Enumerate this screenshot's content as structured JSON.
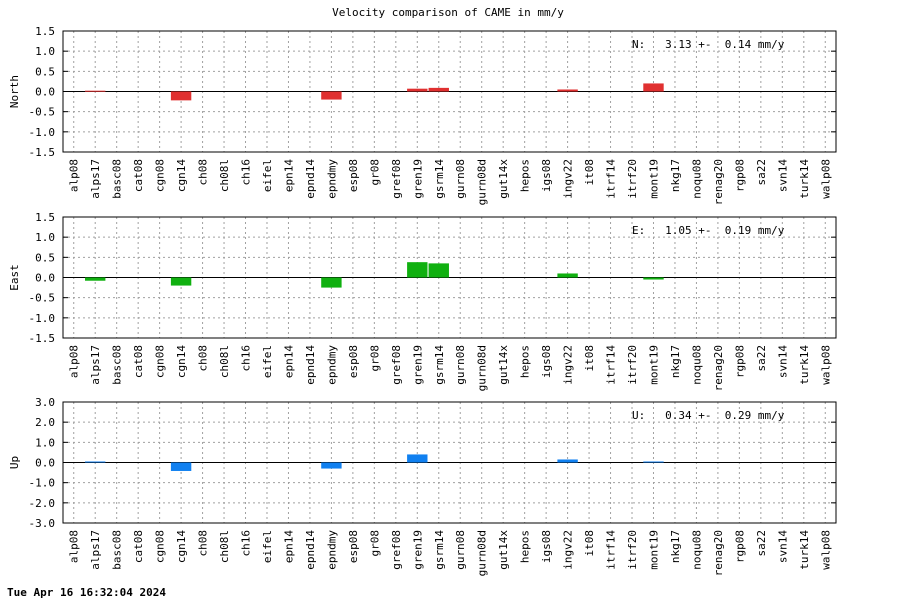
{
  "title": "Velocity comparison of CAME in mm/y",
  "footer": "Tue Apr 16 16:32:04 2024",
  "chart_data": {
    "type": "bar",
    "categories": [
      "alp08",
      "alps17",
      "basc08",
      "cat08",
      "cgn08",
      "cgn14",
      "ch08",
      "ch08l",
      "ch16",
      "eifel",
      "epn14",
      "epnd14",
      "epndmy",
      "esp08",
      "gr08",
      "gref08",
      "gren19",
      "gsrm14",
      "gurn08",
      "gurn08d",
      "gut14x",
      "hepos",
      "igs08",
      "ingv22",
      "it08",
      "itrf14",
      "itrf20",
      "mont19",
      "nkg17",
      "noqu08",
      "renag20",
      "rgp08",
      "sa22",
      "svn14",
      "turk14",
      "walp08"
    ],
    "panels": [
      {
        "ylabel": "North",
        "ylim": [
          -1.5,
          1.5
        ],
        "yticks": [
          "1.5",
          "1.0",
          "0.5",
          "0.0",
          "-0.5",
          "-1.0",
          "-1.5"
        ],
        "annotation": "N:   3.13 +-  0.14 mm/y",
        "color": "#e03030",
        "values": [
          0,
          0.02,
          0,
          0,
          0,
          -0.22,
          0,
          0,
          0,
          0,
          0,
          0,
          -0.2,
          0,
          0,
          0,
          0.07,
          0.09,
          0,
          0,
          0,
          0,
          0,
          0.05,
          0,
          0,
          0,
          0.2,
          0,
          0,
          0,
          0,
          0,
          0,
          0,
          0
        ]
      },
      {
        "ylabel": "East",
        "ylim": [
          -1.5,
          1.5
        ],
        "yticks": [
          "1.5",
          "1.0",
          "0.5",
          "0.0",
          "-0.5",
          "-1.0",
          "-1.5"
        ],
        "annotation": "E:   1.05 +-  0.19 mm/y",
        "color": "#10b010",
        "values": [
          0,
          -0.08,
          0,
          0,
          0,
          -0.2,
          0,
          0,
          0,
          0,
          0,
          0,
          -0.25,
          0,
          0,
          0,
          0.38,
          0.35,
          0,
          0,
          0,
          0,
          0,
          0.1,
          0,
          0,
          0,
          -0.05,
          0,
          0,
          0,
          0,
          0,
          0,
          0,
          0
        ]
      },
      {
        "ylabel": "Up",
        "ylim": [
          -3.0,
          3.0
        ],
        "yticks": [
          "3.0",
          "2.0",
          "1.0",
          "0.0",
          "-1.0",
          "-2.0",
          "-3.0"
        ],
        "annotation": "U:   0.34 +-  0.29 mm/y",
        "color": "#1080f0",
        "values": [
          0,
          0.05,
          0,
          0,
          0,
          -0.42,
          0,
          0,
          0,
          0,
          0,
          0,
          -0.3,
          0,
          0,
          0,
          0.4,
          0,
          0,
          0,
          0,
          0,
          0,
          0.15,
          0,
          0,
          0,
          0.05,
          0,
          0,
          0,
          0,
          0,
          0,
          0,
          0
        ]
      }
    ],
    "grid": true
  }
}
